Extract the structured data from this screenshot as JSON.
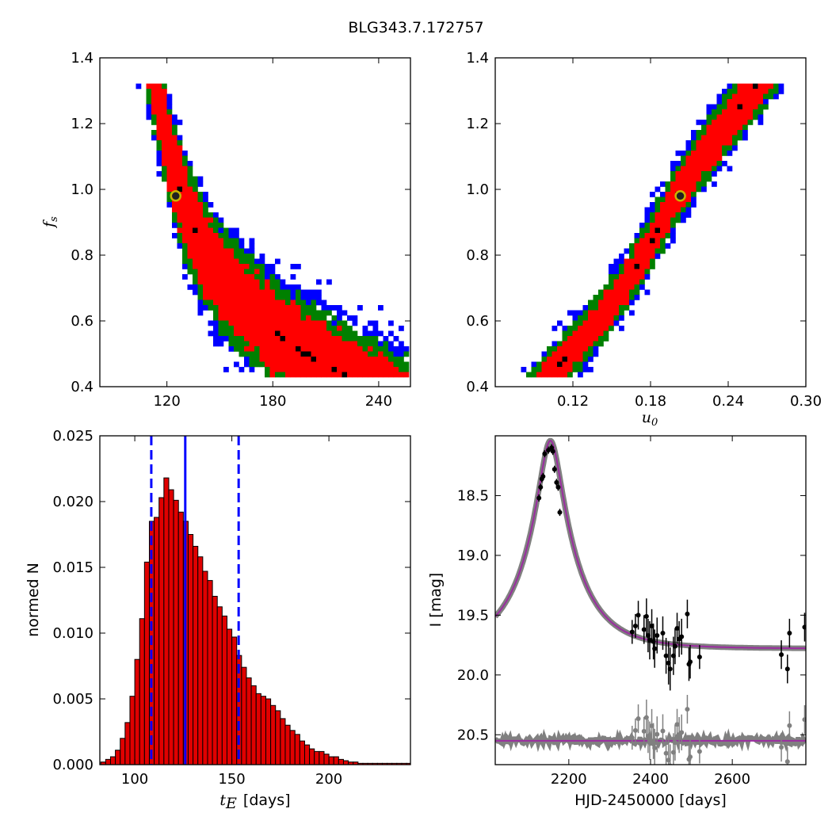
{
  "title": "BLG343.7.172757",
  "colors": {
    "blue": "#0000ff",
    "green": "#008000",
    "red": "#ff0000",
    "black": "#000000",
    "marker_edge": "#c8b400",
    "hist_fill": "#e00000",
    "model": "#9b2ca0",
    "model_band": "#808080",
    "residual": "#808080"
  },
  "chart_data": [
    {
      "type": "heatmap",
      "panel": "top-left",
      "xlabel": "",
      "ylabel": "f_s",
      "ylabel_main": "f",
      "ylabel_sub": "s",
      "xlim": [
        82,
        258
      ],
      "ylim": [
        0.4,
        1.4
      ],
      "xticks": [
        120,
        180,
        240
      ],
      "yticks": [
        0.4,
        0.6,
        0.8,
        1.0,
        1.2,
        1.4
      ],
      "levels": [
        "black",
        "red",
        "green",
        "blue"
      ],
      "band_description": "posterior band: f_s decreases as t_E increases",
      "ridge": [
        [
          113,
          1.32
        ],
        [
          122,
          1.1
        ],
        [
          130,
          0.95
        ],
        [
          140,
          0.82
        ],
        [
          152,
          0.72
        ],
        [
          165,
          0.65
        ],
        [
          180,
          0.57
        ],
        [
          195,
          0.51
        ],
        [
          215,
          0.45
        ]
      ],
      "best_fit": {
        "x": 125,
        "y": 0.98
      }
    },
    {
      "type": "heatmap",
      "panel": "top-right",
      "xlabel": "u_0",
      "xlabel_main": "u",
      "xlabel_sub": "0",
      "ylabel": "",
      "xlim": [
        0.06,
        0.3
      ],
      "ylim": [
        0.4,
        1.4
      ],
      "xticks": [
        0.12,
        0.18,
        0.24,
        0.3
      ],
      "yticks": [
        0.4,
        0.6,
        0.8,
        1.0,
        1.2,
        1.4
      ],
      "levels": [
        "black",
        "red",
        "green",
        "blue"
      ],
      "band_description": "posterior band: f_s increases linearly with u_0",
      "ridge": [
        [
          0.103,
          0.44
        ],
        [
          0.145,
          0.62
        ],
        [
          0.175,
          0.8
        ],
        [
          0.2,
          0.98
        ],
        [
          0.225,
          1.12
        ],
        [
          0.262,
          1.32
        ]
      ],
      "best_fit": {
        "x": 0.203,
        "y": 0.98
      }
    },
    {
      "type": "bar",
      "panel": "bottom-left",
      "xlabel": "t_E  [days]",
      "xlabel_main": "t",
      "xlabel_sub": "E",
      "xlabel_unit": "[days]",
      "ylabel": "normed N",
      "xlim": [
        82,
        242
      ],
      "ylim": [
        0,
        0.025
      ],
      "xticks": [
        100,
        150,
        200
      ],
      "yticks": [
        0.0,
        0.005,
        0.01,
        0.015,
        0.02,
        0.025
      ],
      "ytick_labels": [
        "0.000",
        "0.005",
        "0.010",
        "0.015",
        "0.020",
        "0.025"
      ],
      "bin_start": 82.5,
      "bin_width": 2.5,
      "values": [
        0.0002,
        0.0004,
        0.0006,
        0.0011,
        0.002,
        0.0032,
        0.0052,
        0.008,
        0.0111,
        0.0154,
        0.0185,
        0.0188,
        0.0203,
        0.0218,
        0.0209,
        0.0201,
        0.0192,
        0.0185,
        0.0175,
        0.0166,
        0.0158,
        0.0147,
        0.014,
        0.0128,
        0.012,
        0.0113,
        0.0103,
        0.0097,
        0.0083,
        0.0074,
        0.0066,
        0.006,
        0.0054,
        0.0052,
        0.005,
        0.0045,
        0.0041,
        0.0035,
        0.003,
        0.0026,
        0.0023,
        0.0018,
        0.0015,
        0.0012,
        0.001,
        0.001,
        0.0008,
        0.0006,
        0.0006,
        0.0004,
        0.0003,
        0.0002,
        0.0002,
        0.0001,
        0.0001,
        0.0001,
        0.0001,
        0.0001,
        0.0001,
        0.0001,
        0.0001,
        0.0001,
        0.0001,
        0.0001
      ],
      "vlines": {
        "median": 126,
        "lower": 108.5,
        "upper": 153.5
      }
    },
    {
      "type": "scatter",
      "panel": "bottom-right",
      "xlabel": "HJD-2450000 [days]",
      "ylabel": "I [mag]",
      "xlim": [
        2020,
        2780
      ],
      "ylim": [
        20.75,
        18.0
      ],
      "xticks": [
        2200,
        2400,
        2600
      ],
      "yticks": [
        18.5,
        19.0,
        19.5,
        20.0,
        20.5
      ],
      "ytick_labels": [
        "18.5",
        "19.0",
        "19.5",
        "20.0",
        "20.5"
      ],
      "model": {
        "t0": 2155,
        "tE": 126,
        "u0": 0.203,
        "baseline": 19.78,
        "peak": 18.04
      },
      "residual_offset": 20.55,
      "points": [
        {
          "x": 2127,
          "y": 18.52,
          "e": 0.03
        },
        {
          "x": 2131,
          "y": 18.43,
          "e": 0.03
        },
        {
          "x": 2134,
          "y": 18.36,
          "e": 0.03
        },
        {
          "x": 2137,
          "y": 18.34,
          "e": 0.03
        },
        {
          "x": 2141,
          "y": 18.15,
          "e": 0.03
        },
        {
          "x": 2150,
          "y": 18.12,
          "e": 0.03
        },
        {
          "x": 2158,
          "y": 18.1,
          "e": 0.03
        },
        {
          "x": 2161,
          "y": 18.13,
          "e": 0.03
        },
        {
          "x": 2165,
          "y": 18.28,
          "e": 0.03
        },
        {
          "x": 2170,
          "y": 18.39,
          "e": 0.03
        },
        {
          "x": 2174,
          "y": 18.43,
          "e": 0.03
        },
        {
          "x": 2178,
          "y": 18.64,
          "e": 0.03
        },
        {
          "x": 2355,
          "y": 19.64,
          "e": 0.1
        },
        {
          "x": 2363,
          "y": 19.59,
          "e": 0.1
        },
        {
          "x": 2370,
          "y": 19.5,
          "e": 0.12
        },
        {
          "x": 2384,
          "y": 19.62,
          "e": 0.12
        },
        {
          "x": 2390,
          "y": 19.51,
          "e": 0.15
        },
        {
          "x": 2394,
          "y": 19.67,
          "e": 0.14
        },
        {
          "x": 2398,
          "y": 19.71,
          "e": 0.16
        },
        {
          "x": 2403,
          "y": 19.59,
          "e": 0.14
        },
        {
          "x": 2407,
          "y": 19.72,
          "e": 0.15
        },
        {
          "x": 2410,
          "y": 19.78,
          "e": 0.16
        },
        {
          "x": 2416,
          "y": 19.67,
          "e": 0.15
        },
        {
          "x": 2430,
          "y": 19.65,
          "e": 0.14
        },
        {
          "x": 2438,
          "y": 19.84,
          "e": 0.15
        },
        {
          "x": 2444,
          "y": 19.9,
          "e": 0.18
        },
        {
          "x": 2448,
          "y": 19.95,
          "e": 0.18
        },
        {
          "x": 2456,
          "y": 19.84,
          "e": 0.16
        },
        {
          "x": 2460,
          "y": 19.76,
          "e": 0.15
        },
        {
          "x": 2465,
          "y": 19.61,
          "e": 0.13
        },
        {
          "x": 2470,
          "y": 19.7,
          "e": 0.15
        },
        {
          "x": 2476,
          "y": 19.68,
          "e": 0.15
        },
        {
          "x": 2490,
          "y": 19.49,
          "e": 0.12
        },
        {
          "x": 2494,
          "y": 19.91,
          "e": 0.14
        },
        {
          "x": 2497,
          "y": 19.89,
          "e": 0.14
        },
        {
          "x": 2520,
          "y": 19.85,
          "e": 0.1
        },
        {
          "x": 2720,
          "y": 19.83,
          "e": 0.12
        },
        {
          "x": 2735,
          "y": 19.95,
          "e": 0.12
        },
        {
          "x": 2740,
          "y": 19.65,
          "e": 0.12
        },
        {
          "x": 2777,
          "y": 19.6,
          "e": 0.12
        }
      ]
    }
  ]
}
